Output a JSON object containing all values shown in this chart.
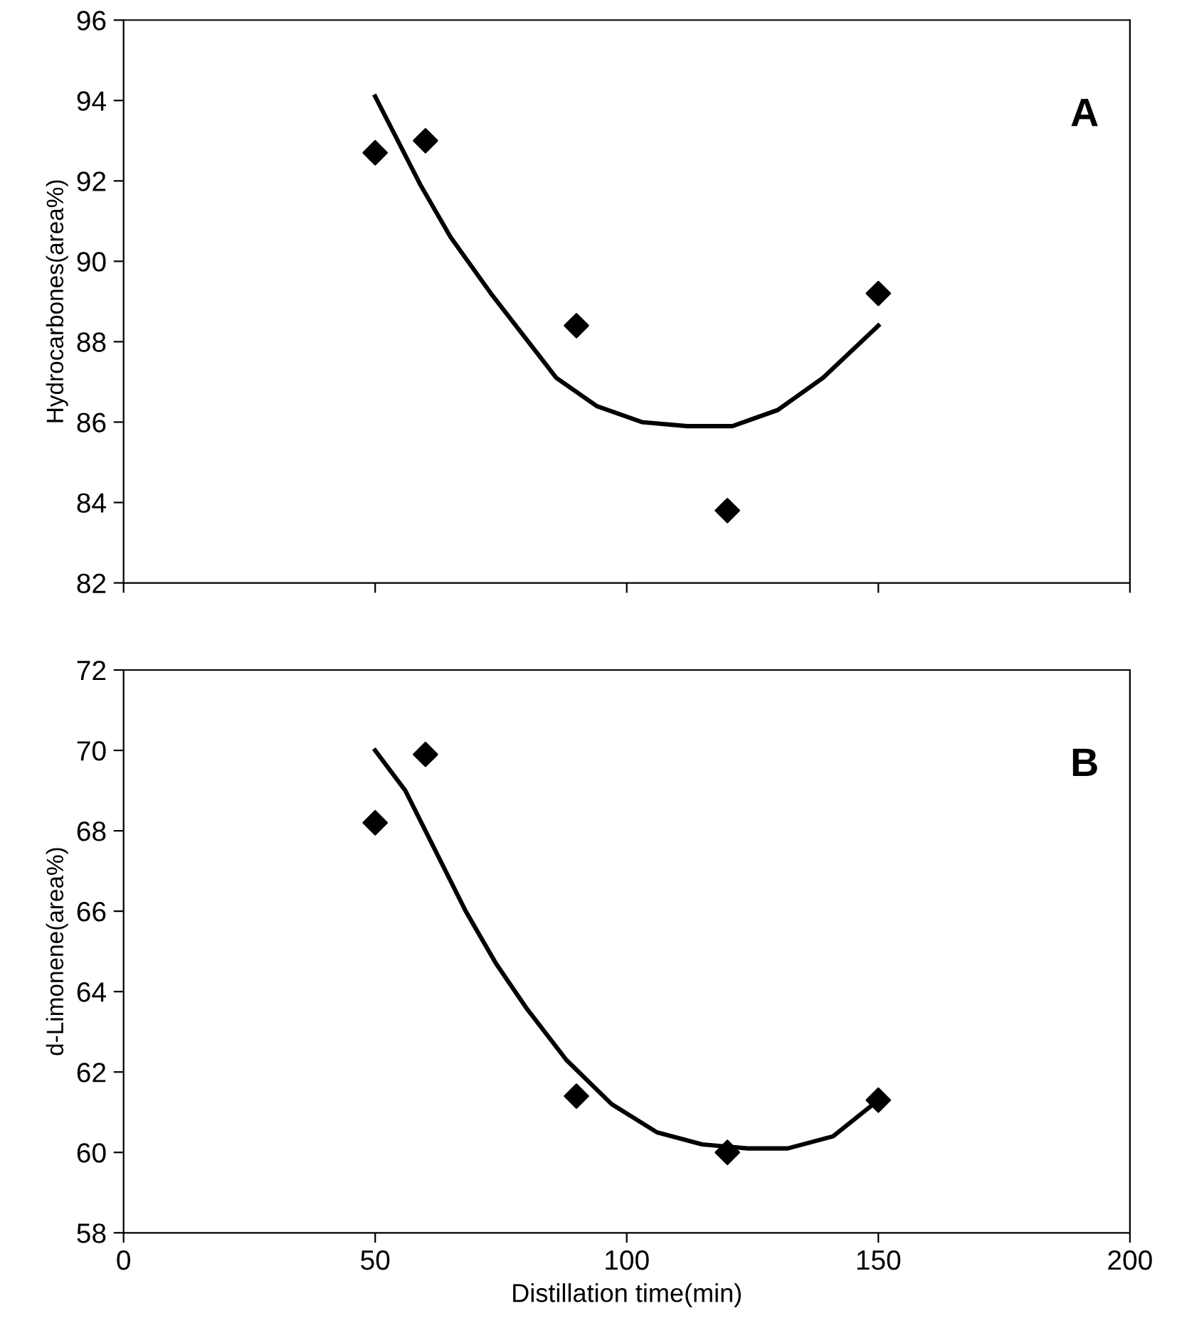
{
  "chart_data": [
    {
      "type": "scatter",
      "ylabel": "Hydrocarbones(area%)",
      "annotations": [
        "A"
      ],
      "xlim": [
        0,
        200
      ],
      "xticks": [
        0,
        50,
        100,
        150,
        200
      ],
      "ylim": [
        82,
        96
      ],
      "yticks": [
        82,
        84,
        86,
        88,
        90,
        92,
        94,
        96
      ],
      "tick_labels": "y",
      "grid": false,
      "legend": false,
      "series": [
        {
          "marker": "diamond",
          "color": "#000000",
          "x": [
            50,
            60,
            90,
            120,
            150
          ],
          "values": [
            92.7,
            93.0,
            88.4,
            83.8,
            89.2
          ]
        },
        {
          "type": "line",
          "marker": "none",
          "line_style": "solid",
          "color": "#000000",
          "x": [
            50,
            59,
            65,
            73,
            86,
            94,
            103,
            112,
            121,
            130,
            139,
            150
          ],
          "values": [
            94.1,
            91.9,
            90.6,
            89.2,
            87.1,
            86.4,
            86.0,
            85.9,
            85.9,
            86.3,
            87.1,
            88.4
          ]
        }
      ]
    },
    {
      "type": "scatter",
      "ylabel": "d-Limonene(area%)",
      "xlabel": "Distillation time(min)",
      "annotations": [
        "B"
      ],
      "xlim": [
        0,
        200
      ],
      "xticks": [
        0,
        50,
        100,
        150,
        200
      ],
      "ylim": [
        58,
        72
      ],
      "yticks": [
        58,
        60,
        62,
        64,
        66,
        68,
        70,
        72
      ],
      "grid": false,
      "legend": false,
      "series": [
        {
          "marker": "diamond",
          "color": "#000000",
          "x": [
            50,
            60,
            90,
            120,
            150
          ],
          "values": [
            68.2,
            69.9,
            61.4,
            60.0,
            61.3
          ]
        },
        {
          "type": "line",
          "marker": "none",
          "line_style": "solid",
          "color": "#000000",
          "x": [
            50,
            56,
            62,
            68,
            74,
            80,
            88,
            97,
            106,
            115,
            124,
            132,
            141,
            150
          ],
          "values": [
            70.0,
            69.0,
            67.5,
            66.0,
            64.7,
            63.6,
            62.3,
            61.2,
            60.5,
            60.2,
            60.1,
            60.1,
            60.4,
            61.3
          ]
        }
      ]
    }
  ]
}
